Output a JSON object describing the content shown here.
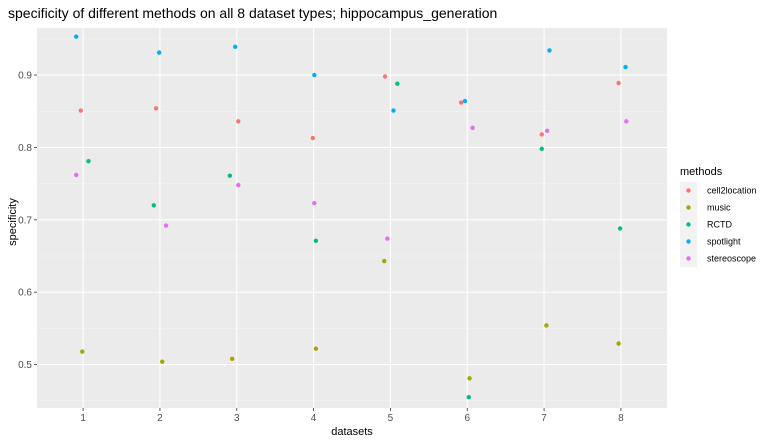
{
  "chart_data": {
    "type": "scatter",
    "title": "specificity of different methods on all 8 dataset types; hippocampus_generation",
    "xlabel": "datasets",
    "ylabel": "specificity",
    "x_ticks": [
      "1",
      "2",
      "3",
      "4",
      "5",
      "6",
      "7",
      "8"
    ],
    "y_ticks": [
      "0.5",
      "0.6",
      "0.7",
      "0.8",
      "0.9"
    ],
    "xlim": [
      0.4,
      8.6
    ],
    "ylim": [
      0.44,
      0.965
    ],
    "grid": true,
    "legend_position": "right",
    "legend_title": "methods",
    "series": [
      {
        "name": "cell2location",
        "color": "#F8766D",
        "points": [
          {
            "x": 0.97,
            "y": 0.851
          },
          {
            "x": 1.95,
            "y": 0.854
          },
          {
            "x": 3.02,
            "y": 0.836
          },
          {
            "x": 3.99,
            "y": 0.813
          },
          {
            "x": 4.93,
            "y": 0.898
          },
          {
            "x": 5.92,
            "y": 0.862
          },
          {
            "x": 6.97,
            "y": 0.818
          },
          {
            "x": 7.97,
            "y": 0.889
          }
        ]
      },
      {
        "name": "music",
        "color": "#A3A500",
        "points": [
          {
            "x": 0.99,
            "y": 0.518
          },
          {
            "x": 2.03,
            "y": 0.504
          },
          {
            "x": 2.94,
            "y": 0.508
          },
          {
            "x": 4.03,
            "y": 0.522
          },
          {
            "x": 4.92,
            "y": 0.643
          },
          {
            "x": 6.03,
            "y": 0.481
          },
          {
            "x": 7.03,
            "y": 0.554
          },
          {
            "x": 7.97,
            "y": 0.529
          }
        ]
      },
      {
        "name": "RCTD",
        "color": "#00BF7D",
        "points": [
          {
            "x": 1.07,
            "y": 0.781
          },
          {
            "x": 1.92,
            "y": 0.72
          },
          {
            "x": 2.91,
            "y": 0.761
          },
          {
            "x": 4.03,
            "y": 0.671
          },
          {
            "x": 5.09,
            "y": 0.888
          },
          {
            "x": 6.02,
            "y": 0.455
          },
          {
            "x": 6.97,
            "y": 0.798
          },
          {
            "x": 7.99,
            "y": 0.688
          }
        ]
      },
      {
        "name": "spotlight",
        "color": "#00B0F6",
        "points": [
          {
            "x": 0.91,
            "y": 0.953
          },
          {
            "x": 1.99,
            "y": 0.931
          },
          {
            "x": 2.98,
            "y": 0.939
          },
          {
            "x": 4.01,
            "y": 0.9
          },
          {
            "x": 5.04,
            "y": 0.851
          },
          {
            "x": 5.97,
            "y": 0.864
          },
          {
            "x": 7.07,
            "y": 0.934
          },
          {
            "x": 8.06,
            "y": 0.911
          }
        ]
      },
      {
        "name": "stereoscope",
        "color": "#E76BF3",
        "points": [
          {
            "x": 0.91,
            "y": 0.762
          },
          {
            "x": 2.08,
            "y": 0.692
          },
          {
            "x": 3.02,
            "y": 0.748
          },
          {
            "x": 4.01,
            "y": 0.723
          },
          {
            "x": 4.96,
            "y": 0.674
          },
          {
            "x": 6.07,
            "y": 0.827
          },
          {
            "x": 7.04,
            "y": 0.823
          },
          {
            "x": 8.07,
            "y": 0.836
          }
        ]
      }
    ]
  }
}
